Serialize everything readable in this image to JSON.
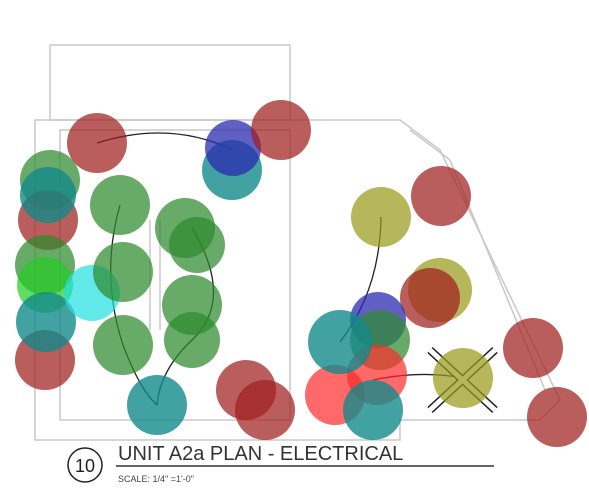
{
  "drawing": {
    "number": "10",
    "title": "UNIT A2a PLAN - ELECTRICAL",
    "scale": "SCALE: 1/4\" =1'-0\""
  }
}
